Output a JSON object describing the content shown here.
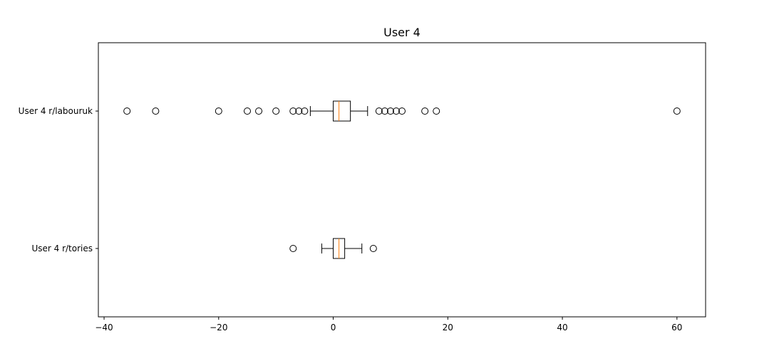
{
  "chart_data": {
    "type": "boxplot",
    "orientation": "horizontal",
    "title": "User 4",
    "xlabel": "",
    "ylabel": "",
    "xlim": [
      -41,
      65
    ],
    "xticks": [
      -40,
      -20,
      0,
      20,
      40,
      60
    ],
    "xtick_labels": [
      "−40",
      "−20",
      "0",
      "20",
      "40",
      "60"
    ],
    "grid": false,
    "colors": {
      "box": "#000000",
      "median": "#ff7f0e",
      "whisker": "#000000",
      "flier": "#000000"
    },
    "series": [
      {
        "name": "User 4 r/labouruk",
        "whisker_low": -4,
        "q1": 0,
        "median": 1,
        "q3": 3,
        "whisker_high": 6,
        "fliers": [
          -36,
          -31,
          -20,
          -15,
          -13,
          -10,
          -7,
          -6,
          -5,
          8,
          9,
          10,
          11,
          12,
          16,
          18,
          60
        ]
      },
      {
        "name": "User 4 r/tories",
        "whisker_low": -2,
        "q1": 0,
        "median": 1,
        "q3": 2,
        "whisker_high": 5,
        "fliers": [
          -7,
          7
        ]
      }
    ]
  }
}
